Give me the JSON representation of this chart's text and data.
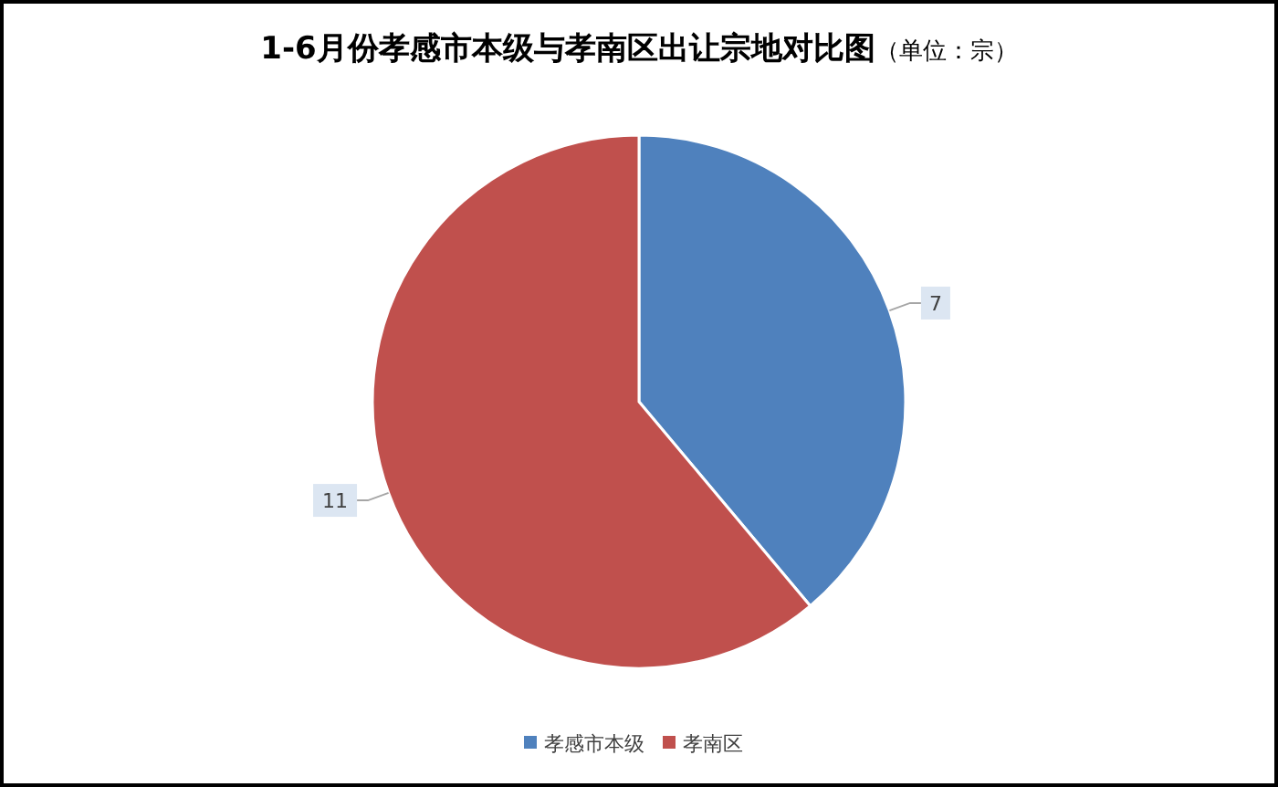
{
  "chart_data": {
    "type": "pie",
    "title": "1-6月份孝感市本级与孝南区出让宗地对比图",
    "subtitle": "（单位：宗）",
    "categories": [
      "孝感市本级",
      "孝南区"
    ],
    "values": [
      7,
      11
    ],
    "colors": [
      "#4f81bd",
      "#c0504d"
    ],
    "data_labels": true,
    "legend": "bottom"
  }
}
